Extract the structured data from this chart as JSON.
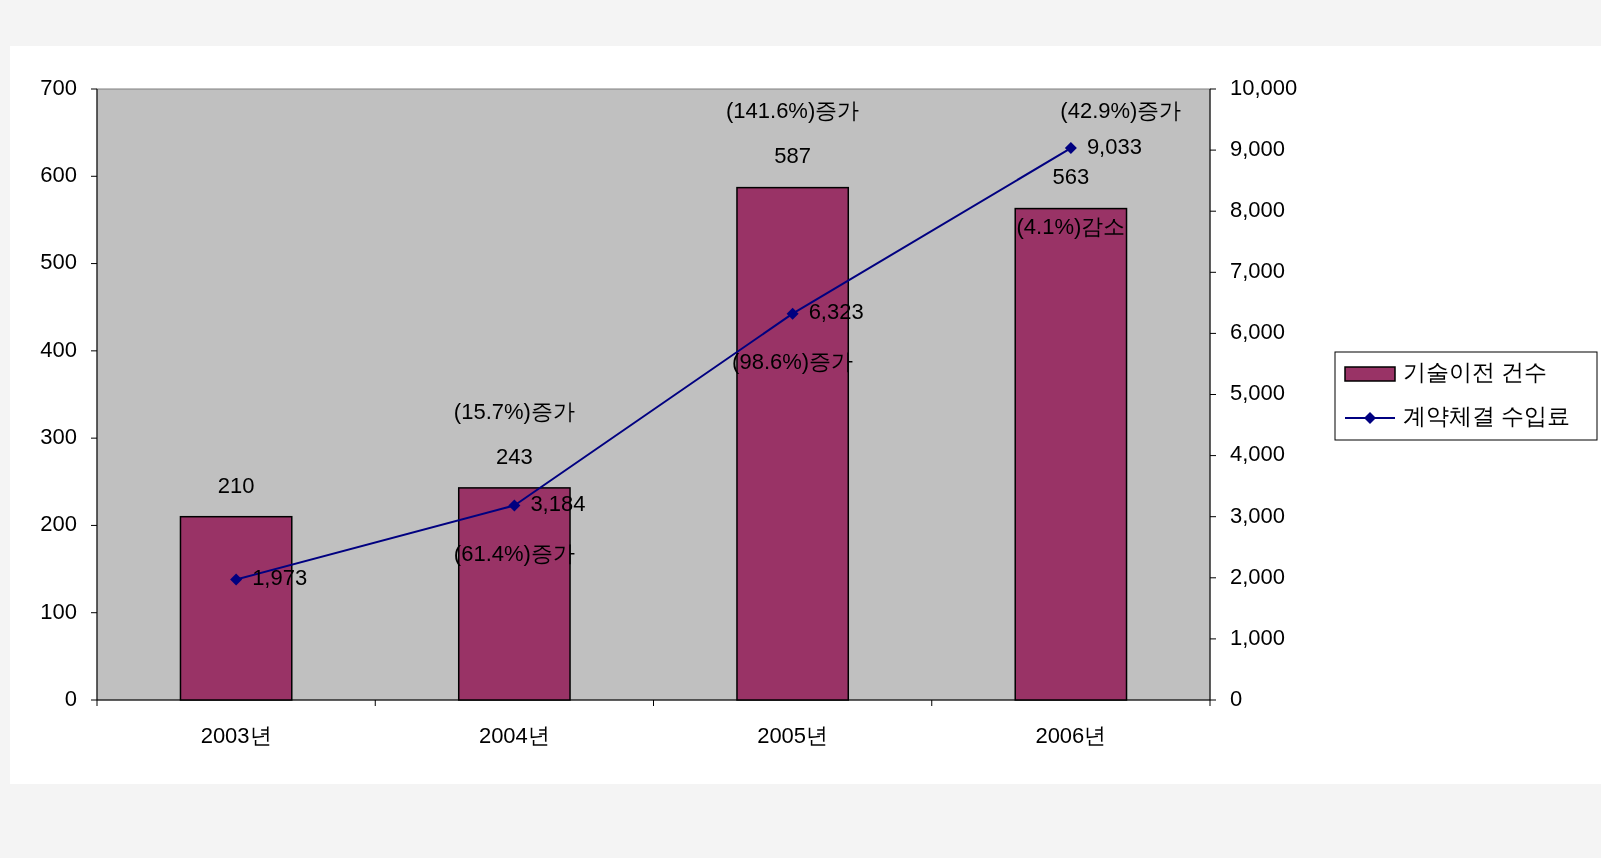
{
  "chart_data": {
    "type": "bar",
    "categories": [
      "2003년",
      "2004년",
      "2005년",
      "2006년"
    ],
    "series": [
      {
        "name": "기술이전 건수",
        "color": "#993366",
        "values": [
          210,
          243,
          587,
          563
        ],
        "value_labels": [
          "210",
          "243",
          "587",
          "563"
        ]
      },
      {
        "name": "계약체결 수입료",
        "type": "line",
        "axis": "y2",
        "color": "#000080",
        "values": [
          1973,
          3184,
          6323,
          9033
        ],
        "value_labels": [
          "1,973",
          "3,184",
          "6,323",
          "9,033"
        ]
      }
    ],
    "ylim": [
      0,
      700
    ],
    "yticks": [
      0,
      100,
      200,
      300,
      400,
      500,
      600,
      700
    ],
    "y2lim": [
      0,
      10000
    ],
    "y2ticks": [
      0,
      {
        "value": 1000,
        "label": "1,000"
      },
      {
        "value": 2000,
        "label": "2,000"
      },
      {
        "value": 3000,
        "label": "3,000"
      },
      {
        "value": 4000,
        "label": "4,000"
      },
      {
        "value": 5000,
        "label": "5,000"
      },
      {
        "value": 6000,
        "label": "6,000"
      },
      {
        "value": 7000,
        "label": "7,000"
      },
      {
        "value": 8000,
        "label": "8,000"
      },
      {
        "value": 9000,
        "label": "9,000"
      },
      {
        "value": 10000,
        "label": "10,000"
      }
    ],
    "marker": "diamond",
    "legend": "right",
    "annotations": [
      "(15.7%)증가",
      "(61.4%)증가",
      "(141.6%)증가",
      "(98.6%)증가",
      "(4.1%)감소",
      "(42.9%)증가"
    ]
  }
}
